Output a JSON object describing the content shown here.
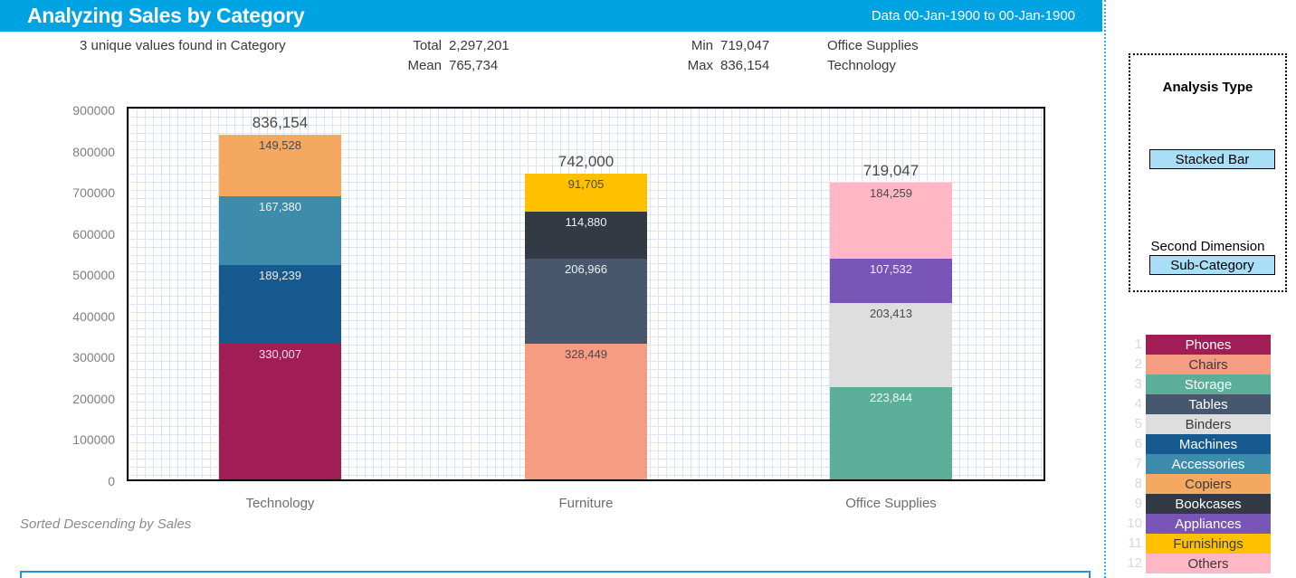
{
  "header": {
    "title": "Analyzing Sales by Category",
    "date_range": "Data 00-Jan-1900 to 00-Jan-1900",
    "accent_color": "#00A3E2"
  },
  "stats": {
    "unique_text": "3 unique values found in Category",
    "total_label": "Total",
    "total_value": "2,297,201",
    "mean_label": "Mean",
    "mean_value": "765,734",
    "min_label": "Min",
    "min_value": "719,047",
    "min_category": "Office Supplies",
    "max_label": "Max",
    "max_value": "836,154",
    "max_category": "Technology"
  },
  "chart_data": {
    "type": "bar",
    "stacked": true,
    "title": "Analyzing Sales by Category",
    "xlabel": "",
    "ylabel": "",
    "ylim": [
      0,
      900000
    ],
    "ytick_step": 100000,
    "ytick_labels": [
      "0",
      "100000",
      "200000",
      "300000",
      "400000",
      "500000",
      "600000",
      "700000",
      "800000",
      "900000"
    ],
    "grid": true,
    "categories": [
      "Technology",
      "Furniture",
      "Office Supplies"
    ],
    "totals": [
      836154,
      742000,
      719047
    ],
    "total_labels": [
      "836,154",
      "742,000",
      "719,047"
    ],
    "stacks": [
      {
        "category": "Technology",
        "segments": [
          {
            "name": "Phones",
            "value": 330007,
            "label": "330,007",
            "color": "#A01D55",
            "text_color": "#EDE4E9"
          },
          {
            "name": "Machines",
            "value": 189239,
            "label": "189,239",
            "color": "#165A8F",
            "text_color": "#E8EDF2"
          },
          {
            "name": "Accessories",
            "value": 167380,
            "label": "167,380",
            "color": "#3E8CAC",
            "text_color": "#EDF3F5"
          },
          {
            "name": "Copiers",
            "value": 149528,
            "label": "149,528",
            "color": "#F5A860",
            "text_color": "#4a4a4a"
          }
        ]
      },
      {
        "category": "Furniture",
        "segments": [
          {
            "name": "Chairs",
            "value": 328449,
            "label": "328,449",
            "color": "#F69C82",
            "text_color": "#4a4a4a"
          },
          {
            "name": "Tables",
            "value": 206966,
            "label": "206,966",
            "color": "#47586E",
            "text_color": "#EDEFF2"
          },
          {
            "name": "Bookcases",
            "value": 114880,
            "label": "114,880",
            "color": "#333A43",
            "text_color": "#EDEFF2"
          },
          {
            "name": "Furnishings",
            "value": 91705,
            "label": "91,705",
            "color": "#FFC000",
            "text_color": "#4a4a4a"
          }
        ]
      },
      {
        "category": "Office Supplies",
        "segments": [
          {
            "name": "Storage",
            "value": 223844,
            "label": "223,844",
            "color": "#5BAF98",
            "text_color": "#F0F5F3"
          },
          {
            "name": "Binders",
            "value": 203413,
            "label": "203,413",
            "color": "#DEDEDE",
            "text_color": "#4a4a4a"
          },
          {
            "name": "Appliances",
            "value": 107532,
            "label": "107,532",
            "color": "#7A55B8",
            "text_color": "#F0EDF5"
          },
          {
            "name": "Others",
            "value": 184259,
            "label": "184,259",
            "color": "#FFB7C5",
            "text_color": "#4a4a4a"
          }
        ]
      }
    ]
  },
  "footnote": "Sorted Descending by Sales",
  "sidebar": {
    "analysis_type_label": "Analysis Type",
    "analysis_type_value": "Stacked Bar",
    "second_dimension_label": "Second Dimension",
    "second_dimension_value": "Sub-Category",
    "button_color": "#A9DEF7"
  },
  "legend": {
    "items": [
      {
        "index": "1",
        "label": "Phones",
        "color": "#A01D55",
        "text_color": "#FFFFFF"
      },
      {
        "index": "2",
        "label": "Chairs",
        "color": "#F69C82",
        "text_color": "#3A3A3A"
      },
      {
        "index": "3",
        "label": "Storage",
        "color": "#5BAF98",
        "text_color": "#FFFFFF"
      },
      {
        "index": "4",
        "label": "Tables",
        "color": "#47586E",
        "text_color": "#FFFFFF"
      },
      {
        "index": "5",
        "label": "Binders",
        "color": "#DEDEDE",
        "text_color": "#3A3A3A"
      },
      {
        "index": "6",
        "label": "Machines",
        "color": "#165A8F",
        "text_color": "#FFFFFF"
      },
      {
        "index": "7",
        "label": "Accessories",
        "color": "#3E8CAC",
        "text_color": "#FFFFFF"
      },
      {
        "index": "8",
        "label": "Copiers",
        "color": "#F5A860",
        "text_color": "#3A3A3A"
      },
      {
        "index": "9",
        "label": "Bookcases",
        "color": "#333A43",
        "text_color": "#FFFFFF"
      },
      {
        "index": "10",
        "label": "Appliances",
        "color": "#7A55B8",
        "text_color": "#FFFFFF"
      },
      {
        "index": "11",
        "label": "Furnishings",
        "color": "#FFC000",
        "text_color": "#3A3A3A"
      },
      {
        "index": "12",
        "label": "Others",
        "color": "#FFB7C5",
        "text_color": "#3A3A3A"
      }
    ]
  }
}
